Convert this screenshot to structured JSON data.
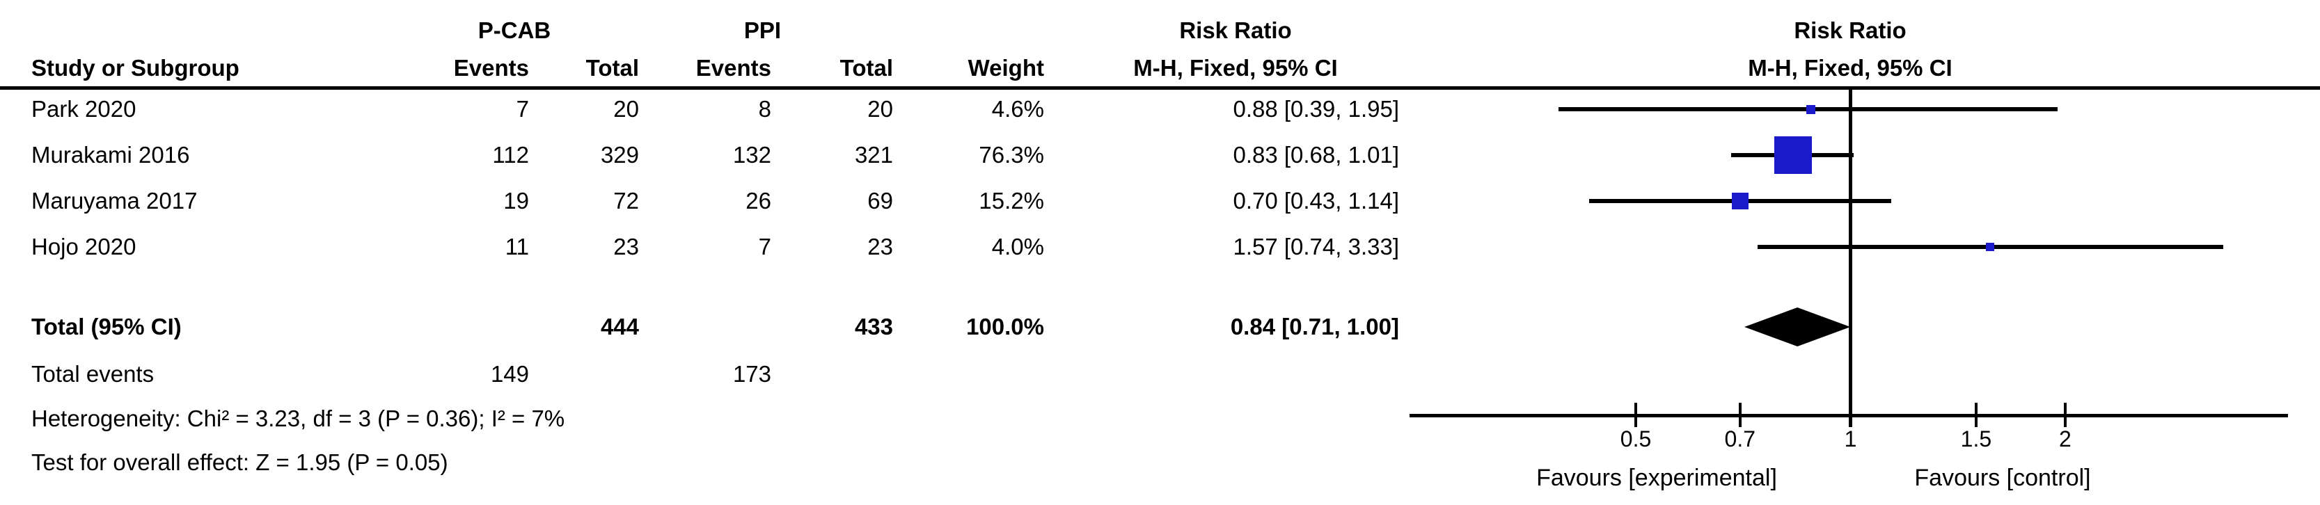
{
  "title_row": {
    "group1": "P-CAB",
    "group2": "PPI",
    "risk_ratio": "Risk Ratio"
  },
  "columns": {
    "study": "Study or Subgroup",
    "events": "Events",
    "total": "Total",
    "weight": "Weight",
    "method": "M-H, Fixed, 95% CI"
  },
  "rows": [
    {
      "study": "Park 2020",
      "e1": "7",
      "t1": "20",
      "e2": "8",
      "t2": "20",
      "weight": "4.6%",
      "ci": "0.88 [0.39, 1.95]"
    },
    {
      "study": "Murakami 2016",
      "e1": "112",
      "t1": "329",
      "e2": "132",
      "t2": "321",
      "weight": "76.3%",
      "ci": "0.83 [0.68, 1.01]"
    },
    {
      "study": "Maruyama 2017",
      "e1": "19",
      "t1": "72",
      "e2": "26",
      "t2": "69",
      "weight": "15.2%",
      "ci": "0.70 [0.43, 1.14]"
    },
    {
      "study": "Hojo 2020",
      "e1": "11",
      "t1": "23",
      "e2": "7",
      "t2": "23",
      "weight": "4.0%",
      "ci": "1.57 [0.74, 3.33]"
    }
  ],
  "total_row": {
    "label": "Total (95% CI)",
    "t1": "444",
    "t2": "433",
    "weight": "100.0%",
    "ci": "0.84 [0.71, 1.00]"
  },
  "total_events": {
    "label": "Total events",
    "e1": "149",
    "e2": "173"
  },
  "footnotes": {
    "heterogeneity": "Heterogeneity: Chi² = 3.23, df = 3 (P = 0.36); I² = 7%",
    "overall": "Test for overall effect: Z = 1.95 (P = 0.05)"
  },
  "plot_labels": {
    "favours_left": "Favours [experimental]",
    "favours_right": "Favours [control]"
  },
  "colors": {
    "marker_blue": "#1a1ac8",
    "diamond_black": "#000000",
    "line_black": "#000000"
  },
  "chart_data": {
    "type": "scatter",
    "subtype": "forest-plot",
    "title": "Risk Ratio",
    "effect_measure": "M-H, Fixed, 95% CI",
    "x_scale": "log",
    "axis_ticks": [
      0.5,
      0.7,
      1,
      1.5,
      2
    ],
    "null_line": 1,
    "studies": [
      {
        "name": "Park 2020",
        "events_pcab": 7,
        "total_pcab": 20,
        "events_ppi": 8,
        "total_ppi": 20,
        "weight_pct": 4.6,
        "rr": 0.88,
        "ci_low": 0.39,
        "ci_high": 1.95
      },
      {
        "name": "Murakami 2016",
        "events_pcab": 112,
        "total_pcab": 329,
        "events_ppi": 132,
        "total_ppi": 321,
        "weight_pct": 76.3,
        "rr": 0.83,
        "ci_low": 0.68,
        "ci_high": 1.01
      },
      {
        "name": "Maruyama 2017",
        "events_pcab": 19,
        "total_pcab": 72,
        "events_ppi": 26,
        "total_ppi": 69,
        "weight_pct": 15.2,
        "rr": 0.7,
        "ci_low": 0.43,
        "ci_high": 1.14
      },
      {
        "name": "Hojo 2020",
        "events_pcab": 11,
        "total_pcab": 23,
        "events_ppi": 7,
        "total_ppi": 23,
        "weight_pct": 4.0,
        "rr": 1.57,
        "ci_low": 0.74,
        "ci_high": 3.33
      }
    ],
    "total": {
      "label": "Total (95% CI)",
      "total_pcab": 444,
      "total_ppi": 433,
      "weight_pct": 100.0,
      "rr": 0.84,
      "ci_low": 0.71,
      "ci_high": 1.0,
      "total_events_pcab": 149,
      "total_events_ppi": 173
    },
    "heterogeneity": {
      "chi2": 3.23,
      "df": 3,
      "p": 0.36,
      "i2_pct": 7
    },
    "overall_effect": {
      "z": 1.95,
      "p": 0.05
    },
    "favours_left": "Favours [experimental]",
    "favours_right": "Favours [control]"
  }
}
